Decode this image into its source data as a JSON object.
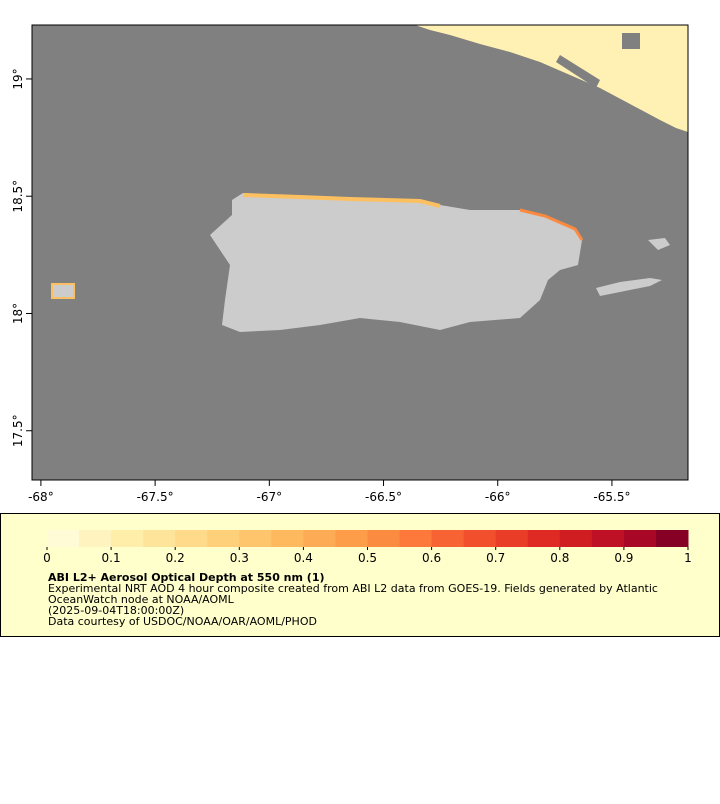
{
  "map": {
    "xlim": [
      -68.039,
      -65.167
    ],
    "ylim": [
      17.29,
      19.23
    ],
    "xticks": [
      {
        "value": -68,
        "label": "-68°"
      },
      {
        "value": -67.5,
        "label": "-67.5°"
      },
      {
        "value": -67,
        "label": "-67°"
      },
      {
        "value": -66.5,
        "label": "-66.5°"
      },
      {
        "value": -66,
        "label": "-66°"
      },
      {
        "value": -65.5,
        "label": "-65.5°"
      }
    ],
    "yticks": [
      {
        "value": 17.5,
        "label": "17.5°"
      },
      {
        "value": 18,
        "label": "18°"
      },
      {
        "value": 18.5,
        "label": "18.5°"
      },
      {
        "value": 19,
        "label": "19°"
      }
    ]
  },
  "colorbar": {
    "range": [
      0,
      1
    ],
    "colors": [
      "#fffbd6",
      "#fff4c0",
      "#ffedaa",
      "#fee49a",
      "#feda8a",
      "#fed07a",
      "#fec56c",
      "#feb95f",
      "#fdab54",
      "#fd9d4a",
      "#fc8b42",
      "#fc783b",
      "#f86334",
      "#f24f2d",
      "#e93d27",
      "#de2a22",
      "#d01d21",
      "#bf1126",
      "#a80826",
      "#860026"
    ],
    "ticks": [
      0,
      0.1,
      0.2,
      0.3,
      0.4,
      0.5,
      0.6,
      0.7,
      0.8,
      0.9,
      1
    ]
  },
  "legend": {
    "title": "ABI L2+ Aerosol Optical Depth at 550 nm (1)",
    "lines": [
      "Experimental NRT AOD 4 hour composite created from ABI L2 data from GOES-19. Fields generated by Atlantic",
      "OceanWatch node at NOAA/AOML",
      "(2025-09-04T18:00:00Z)",
      "Data courtesy of USDOC/NOAA/OAR/AOML/PHOD"
    ]
  }
}
